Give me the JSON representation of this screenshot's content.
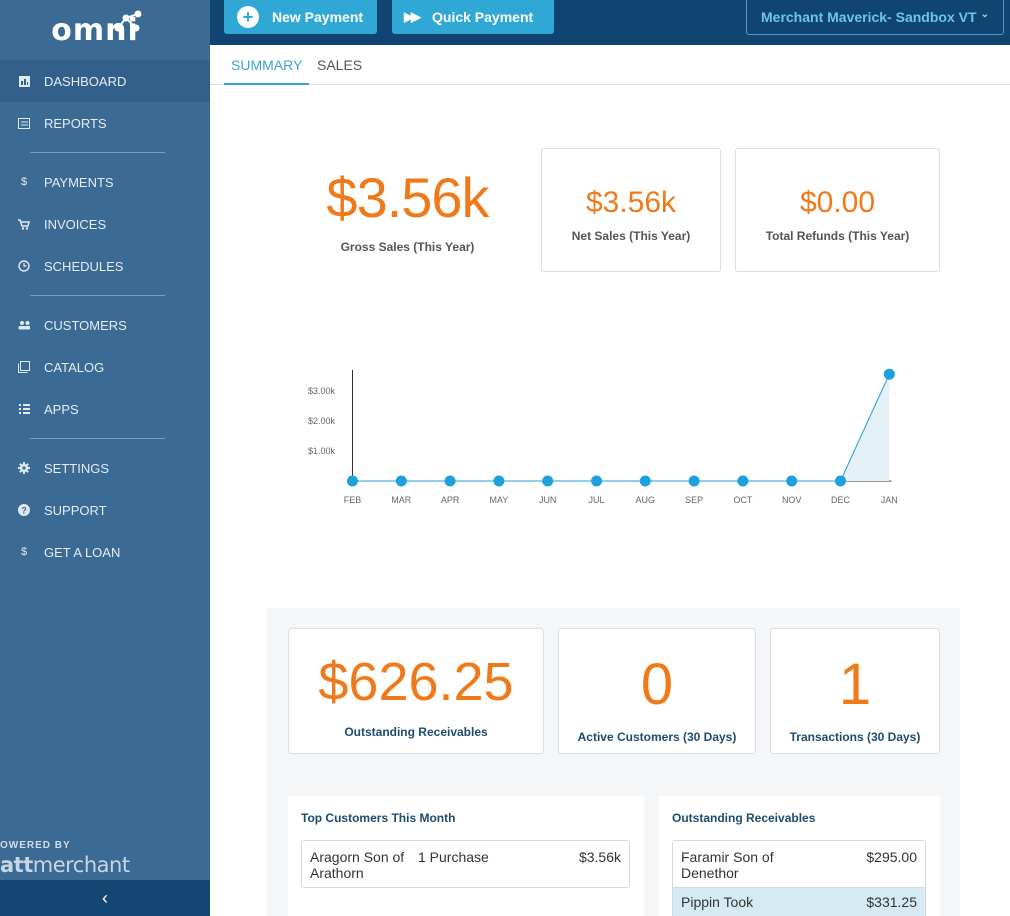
{
  "app": {
    "logo": "omni"
  },
  "colors": {
    "accent": "#2fa8d6",
    "orange": "#f07a1a",
    "sidebar": "#3b6a94",
    "topbar": "#0f4570"
  },
  "sidebar": {
    "items": [
      {
        "label": "DASHBOARD",
        "icon": "dashboard-icon"
      },
      {
        "label": "REPORTS",
        "icon": "reports-icon"
      },
      {
        "label": "PAYMENTS",
        "icon": "dollar-icon"
      },
      {
        "label": "INVOICES",
        "icon": "cart-icon"
      },
      {
        "label": "SCHEDULES",
        "icon": "clock-icon"
      },
      {
        "label": "CUSTOMERS",
        "icon": "people-icon"
      },
      {
        "label": "CATALOG",
        "icon": "catalog-icon"
      },
      {
        "label": "APPS",
        "icon": "grid-icon"
      },
      {
        "label": "SETTINGS",
        "icon": "gear-icon"
      },
      {
        "label": "SUPPORT",
        "icon": "help-icon"
      },
      {
        "label": "GET A LOAN",
        "icon": "dollar-icon"
      }
    ],
    "powered_by": "OWERED BY",
    "brand_bold": "att",
    "brand_rest": "merchant",
    "collapse": "‹"
  },
  "topbar": {
    "new_payment": "New Payment",
    "quick_payment": "Quick Payment",
    "merchant": "Merchant Maverick- Sandbox VT"
  },
  "tabs": {
    "summary": "SUMMARY",
    "sales": "SALES"
  },
  "stats": {
    "gross_value": "$3.56k",
    "gross_label": "Gross Sales (This Year)",
    "net_value": "$3.56k",
    "net_label": "Net Sales (This Year)",
    "refunds_value": "$0.00",
    "refunds_label": "Total Refunds (This Year)"
  },
  "chart_data": {
    "type": "area",
    "categories": [
      "FEB",
      "MAR",
      "APR",
      "MAY",
      "JUN",
      "JUL",
      "AUG",
      "SEP",
      "OCT",
      "NOV",
      "DEC",
      "JAN"
    ],
    "values": [
      0,
      0,
      0,
      0,
      0,
      0,
      0,
      0,
      0,
      0,
      0,
      3560
    ],
    "ytick_labels": [
      "$1.00k",
      "$2.00k",
      "$3.00k"
    ],
    "yticks": [
      1000,
      2000,
      3000
    ],
    "ylim": [
      0,
      3700
    ],
    "grid": false,
    "color": "#1ea0da",
    "fill": "#e4f1f8"
  },
  "lower": {
    "receivables_value": "$626.25",
    "receivables_label": "Outstanding Receivables",
    "customers_value": "0",
    "customers_label": "Active Customers (30 Days)",
    "transactions_value": "1",
    "transactions_label": "Transactions (30 Days)"
  },
  "top_customers": {
    "title": "Top Customers This Month",
    "rows": [
      {
        "name": "Aragorn Son of Arathorn",
        "purchases": "1 Purchase",
        "amount": "$3.56k"
      }
    ]
  },
  "outstanding": {
    "title": "Outstanding Receivables",
    "rows": [
      {
        "name": "Faramir Son of Denethor",
        "amount": "$295.00"
      },
      {
        "name": "Pippin Took",
        "amount": "$331.25"
      }
    ]
  }
}
